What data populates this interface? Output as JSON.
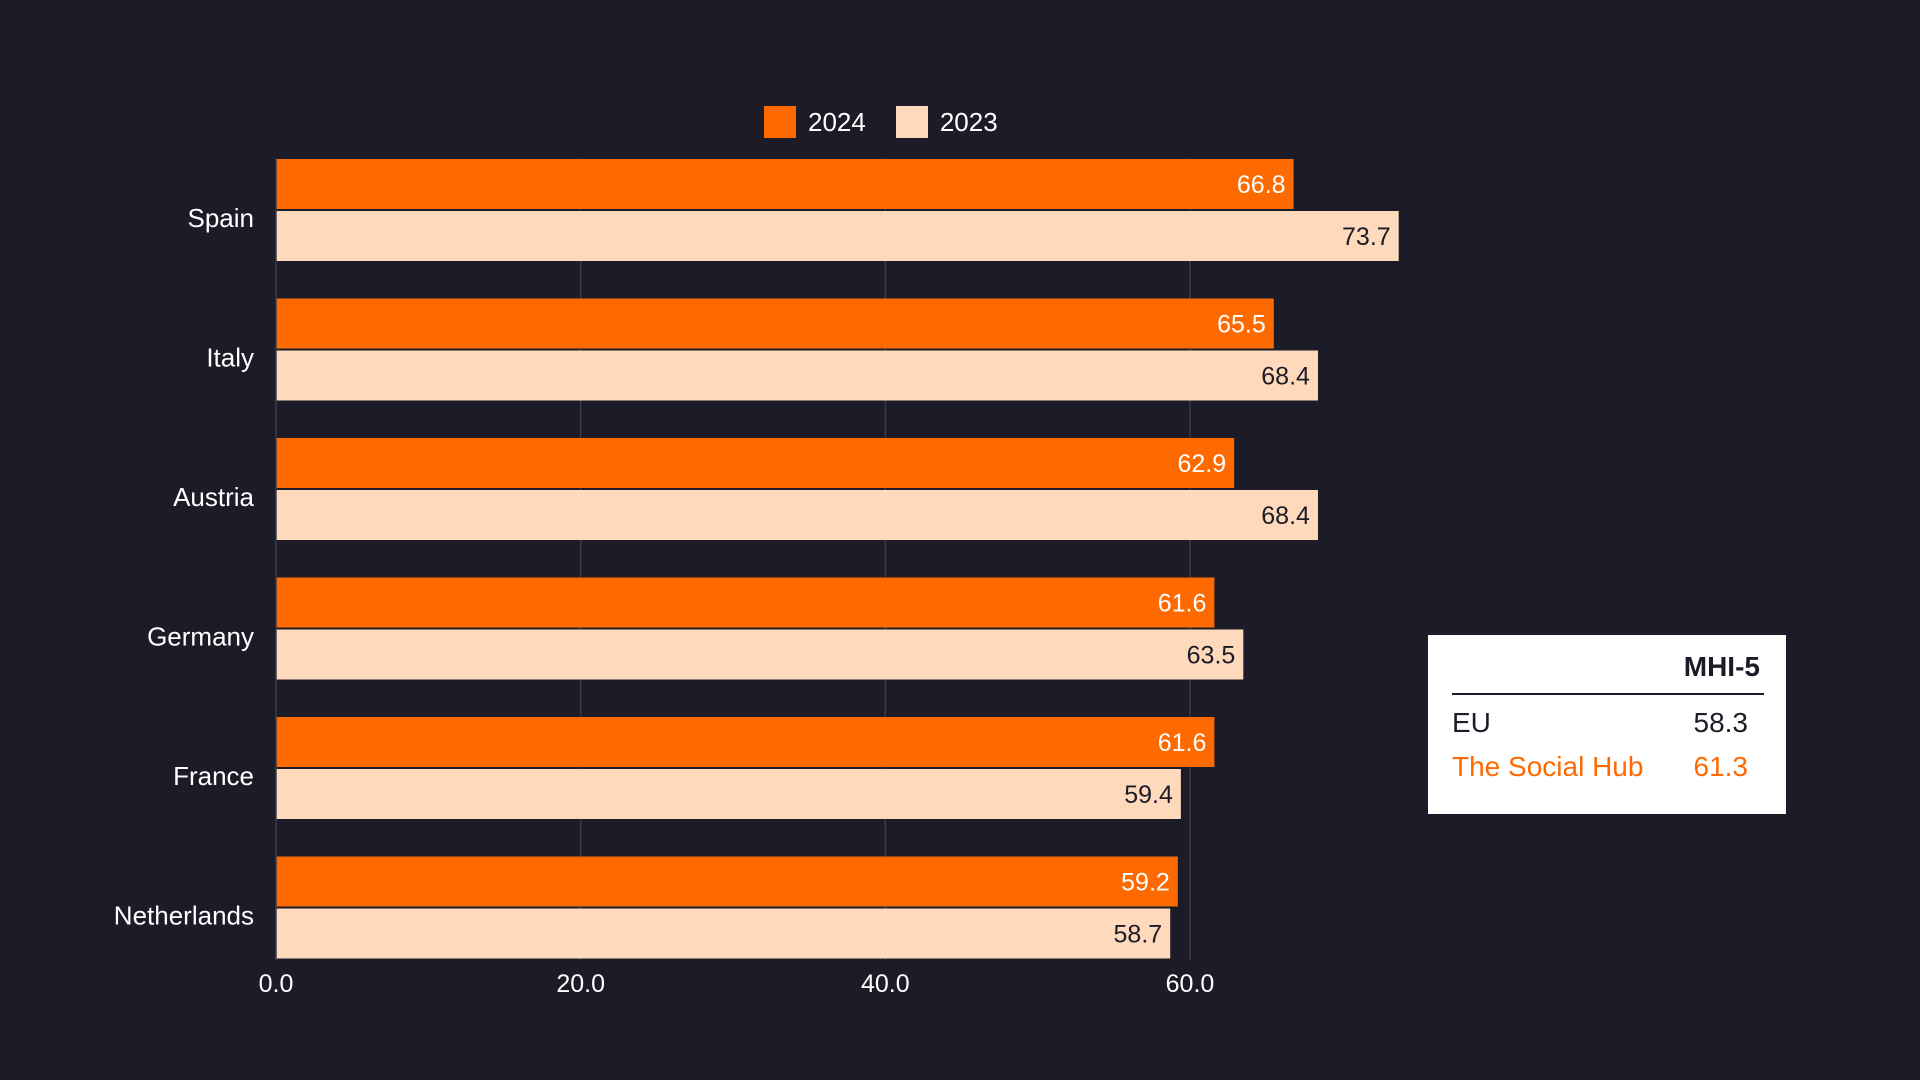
{
  "colors": {
    "background": "#1b1c27",
    "series_2024": "#ff6a00",
    "series_2023": "#ffd9bb",
    "grid": "#3a3b48",
    "text": "#ffffff",
    "dark_text": "#1b1c27"
  },
  "legend": {
    "items": [
      {
        "label": "2024",
        "color": "#ff6a00"
      },
      {
        "label": "2023",
        "color": "#ffd9bb"
      }
    ]
  },
  "chart_data": {
    "type": "bar",
    "orientation": "horizontal",
    "title": "",
    "xlabel": "",
    "ylabel": "",
    "xlim": [
      0,
      75
    ],
    "x_ticks": [
      0,
      20,
      40,
      60
    ],
    "x_tick_labels": [
      "0.0",
      "20.0",
      "40.0",
      "60.0"
    ],
    "grid": true,
    "legend_position": "top-center",
    "categories": [
      "Spain",
      "Italy",
      "Austria",
      "Germany",
      "France",
      "Netherlands"
    ],
    "series": [
      {
        "name": "2024",
        "values": [
          66.8,
          65.5,
          62.9,
          61.6,
          61.6,
          59.2
        ],
        "labels": [
          "66.8",
          "65.5",
          "62.9",
          "61.6",
          "61.6",
          "59.2"
        ]
      },
      {
        "name": "2023",
        "values": [
          73.7,
          68.4,
          68.4,
          63.5,
          59.4,
          58.7
        ],
        "labels": [
          "73.7",
          "68.4",
          "68.4",
          "63.5",
          "59.4",
          "58.7"
        ]
      }
    ]
  },
  "mhi_table": {
    "header": "MHI-5",
    "rows": [
      {
        "label": "EU",
        "value": "58.3"
      },
      {
        "label": "The Social Hub",
        "value": "61.3"
      }
    ]
  }
}
